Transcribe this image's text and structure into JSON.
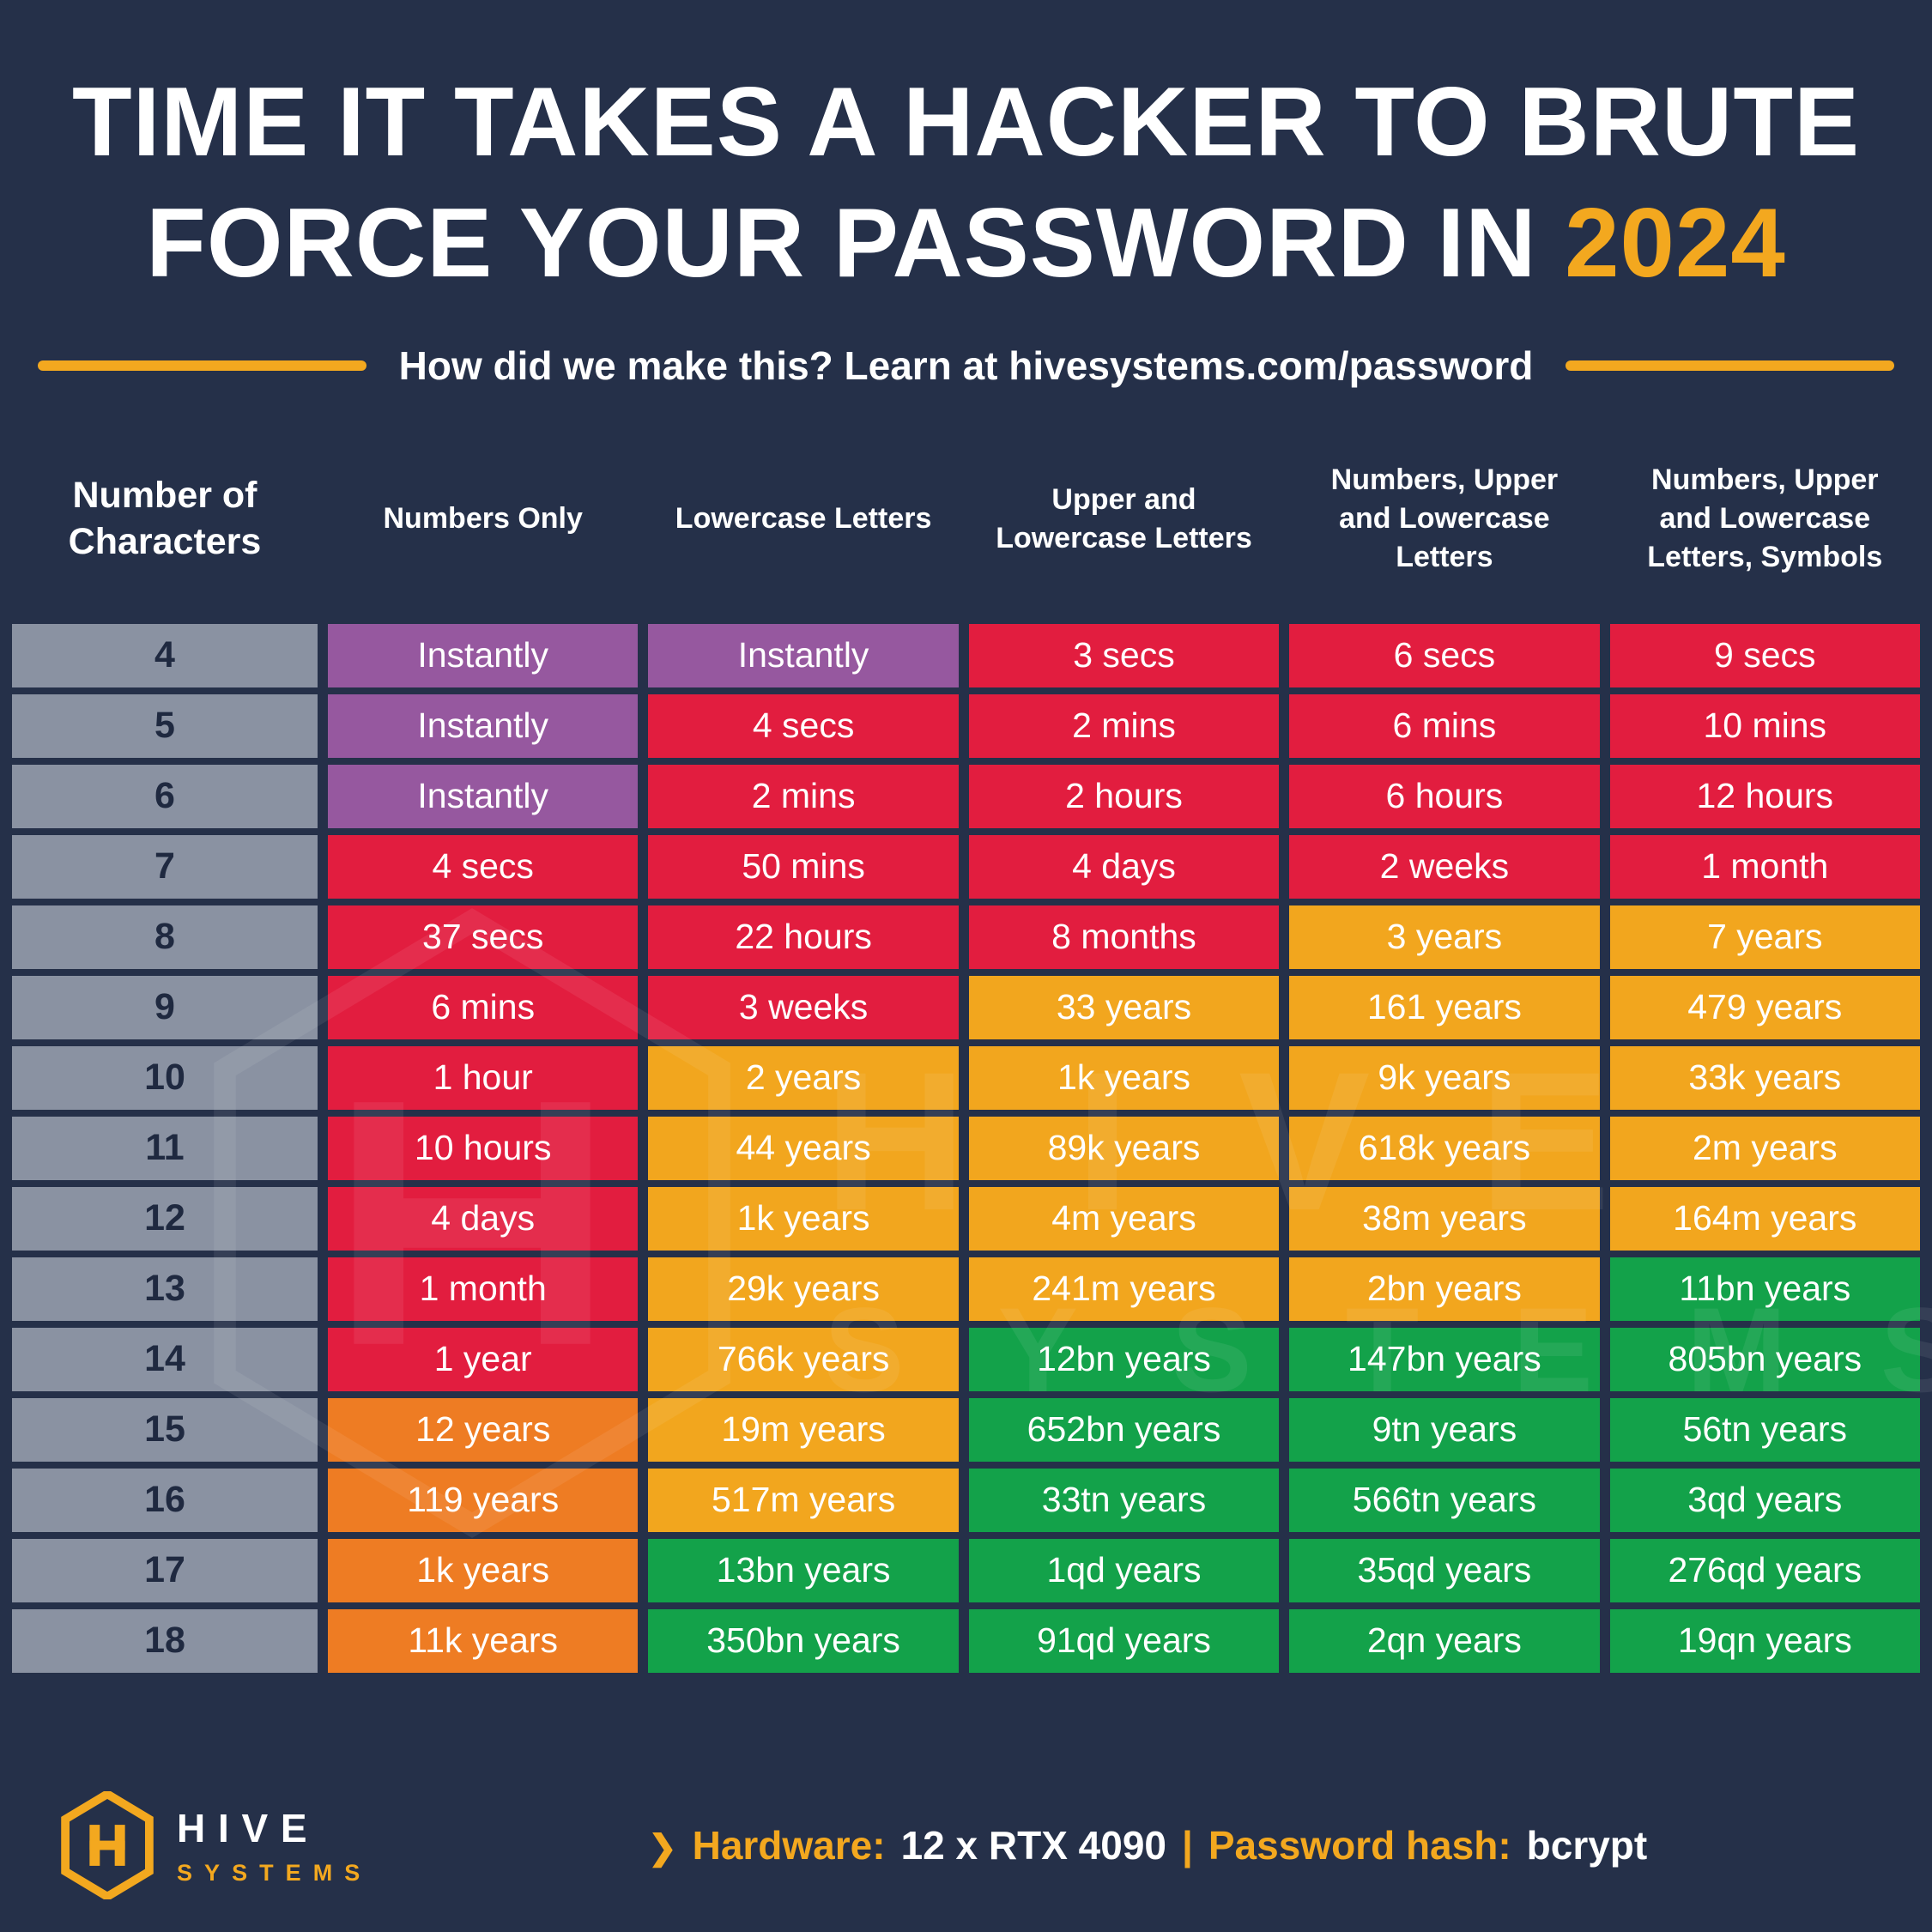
{
  "title": {
    "line1": "TIME IT TAKES A HACKER TO BRUTE",
    "line2": "FORCE YOUR PASSWORD IN",
    "year": "2024"
  },
  "subtitle": "How did we make this? Learn at hivesystems.com/password",
  "table": {
    "columns": [
      "Number of Characters",
      "Numbers Only",
      "Lowercase Letters",
      "Upper and Lowercase Letters",
      "Numbers, Upper and Lowercase Letters",
      "Numbers, Upper and Lowercase Letters, Symbols"
    ]
  },
  "colors": {
    "background": "#253049",
    "accent_yellow": "#f3a81f",
    "purple": "#96589f",
    "red": "#e21d3f",
    "orange": "#ee7c23",
    "yellow": "#f2a61e",
    "green": "#13a24a",
    "char_cell": "#8a92a2",
    "char_text": "#1f2940"
  },
  "watermark": {
    "line1": "HIVE",
    "line2": "SYSTEMS"
  },
  "footer": {
    "brand_name": "HIVE",
    "brand_sub": "SYSTEMS",
    "chevron": "❯",
    "hardware_label": "Hardware:",
    "hardware_value": "12 x RTX 4090",
    "divider": "|",
    "hash_label": "Password hash:",
    "hash_value": "bcrypt"
  },
  "chart_data": {
    "type": "table",
    "title": "Time it takes a hacker to brute force your password in 2024",
    "row_axis_label": "Number of Characters",
    "categories": [
      "4",
      "5",
      "6",
      "7",
      "8",
      "9",
      "10",
      "11",
      "12",
      "13",
      "14",
      "15",
      "16",
      "17",
      "18"
    ],
    "series": [
      {
        "name": "Numbers Only",
        "values": [
          "Instantly",
          "Instantly",
          "Instantly",
          "4 secs",
          "37 secs",
          "6 mins",
          "1 hour",
          "10 hours",
          "4 days",
          "1 month",
          "1 year",
          "12 years",
          "119 years",
          "1k years",
          "11k years"
        ]
      },
      {
        "name": "Lowercase Letters",
        "values": [
          "Instantly",
          "4 secs",
          "2 mins",
          "50 mins",
          "22 hours",
          "3 weeks",
          "2 years",
          "44 years",
          "1k years",
          "29k years",
          "766k years",
          "19m years",
          "517m years",
          "13bn years",
          "350bn years"
        ]
      },
      {
        "name": "Upper and Lowercase Letters",
        "values": [
          "3 secs",
          "2 mins",
          "2 hours",
          "4 days",
          "8 months",
          "33 years",
          "1k years",
          "89k years",
          "4m years",
          "241m years",
          "12bn years",
          "652bn years",
          "33tn years",
          "1qd years",
          "91qd years"
        ]
      },
      {
        "name": "Numbers, Upper and Lowercase Letters",
        "values": [
          "6 secs",
          "6 mins",
          "6 hours",
          "2 weeks",
          "3 years",
          "161 years",
          "9k years",
          "618k years",
          "38m years",
          "2bn years",
          "147bn years",
          "9tn years",
          "566tn years",
          "35qd years",
          "2qn years"
        ]
      },
      {
        "name": "Numbers, Upper and Lowercase Letters, Symbols",
        "values": [
          "9 secs",
          "10 mins",
          "12 hours",
          "1 month",
          "7 years",
          "479 years",
          "33k years",
          "2m years",
          "164m years",
          "11bn years",
          "805bn years",
          "56tn years",
          "3qd years",
          "276qd years",
          "19qn years"
        ]
      }
    ],
    "cell_colors": [
      [
        "purple",
        "purple",
        "red",
        "red",
        "red"
      ],
      [
        "purple",
        "red",
        "red",
        "red",
        "red"
      ],
      [
        "purple",
        "red",
        "red",
        "red",
        "red"
      ],
      [
        "red",
        "red",
        "red",
        "red",
        "red"
      ],
      [
        "red",
        "red",
        "red",
        "yellow",
        "yellow"
      ],
      [
        "red",
        "red",
        "yellow",
        "yellow",
        "yellow"
      ],
      [
        "red",
        "yellow",
        "yellow",
        "yellow",
        "yellow"
      ],
      [
        "red",
        "yellow",
        "yellow",
        "yellow",
        "yellow"
      ],
      [
        "red",
        "yellow",
        "yellow",
        "yellow",
        "yellow"
      ],
      [
        "red",
        "yellow",
        "yellow",
        "yellow",
        "green"
      ],
      [
        "red",
        "yellow",
        "green",
        "green",
        "green"
      ],
      [
        "orange",
        "yellow",
        "green",
        "green",
        "green"
      ],
      [
        "orange",
        "yellow",
        "green",
        "green",
        "green"
      ],
      [
        "orange",
        "green",
        "green",
        "green",
        "green"
      ],
      [
        "orange",
        "green",
        "green",
        "green",
        "green"
      ]
    ]
  }
}
